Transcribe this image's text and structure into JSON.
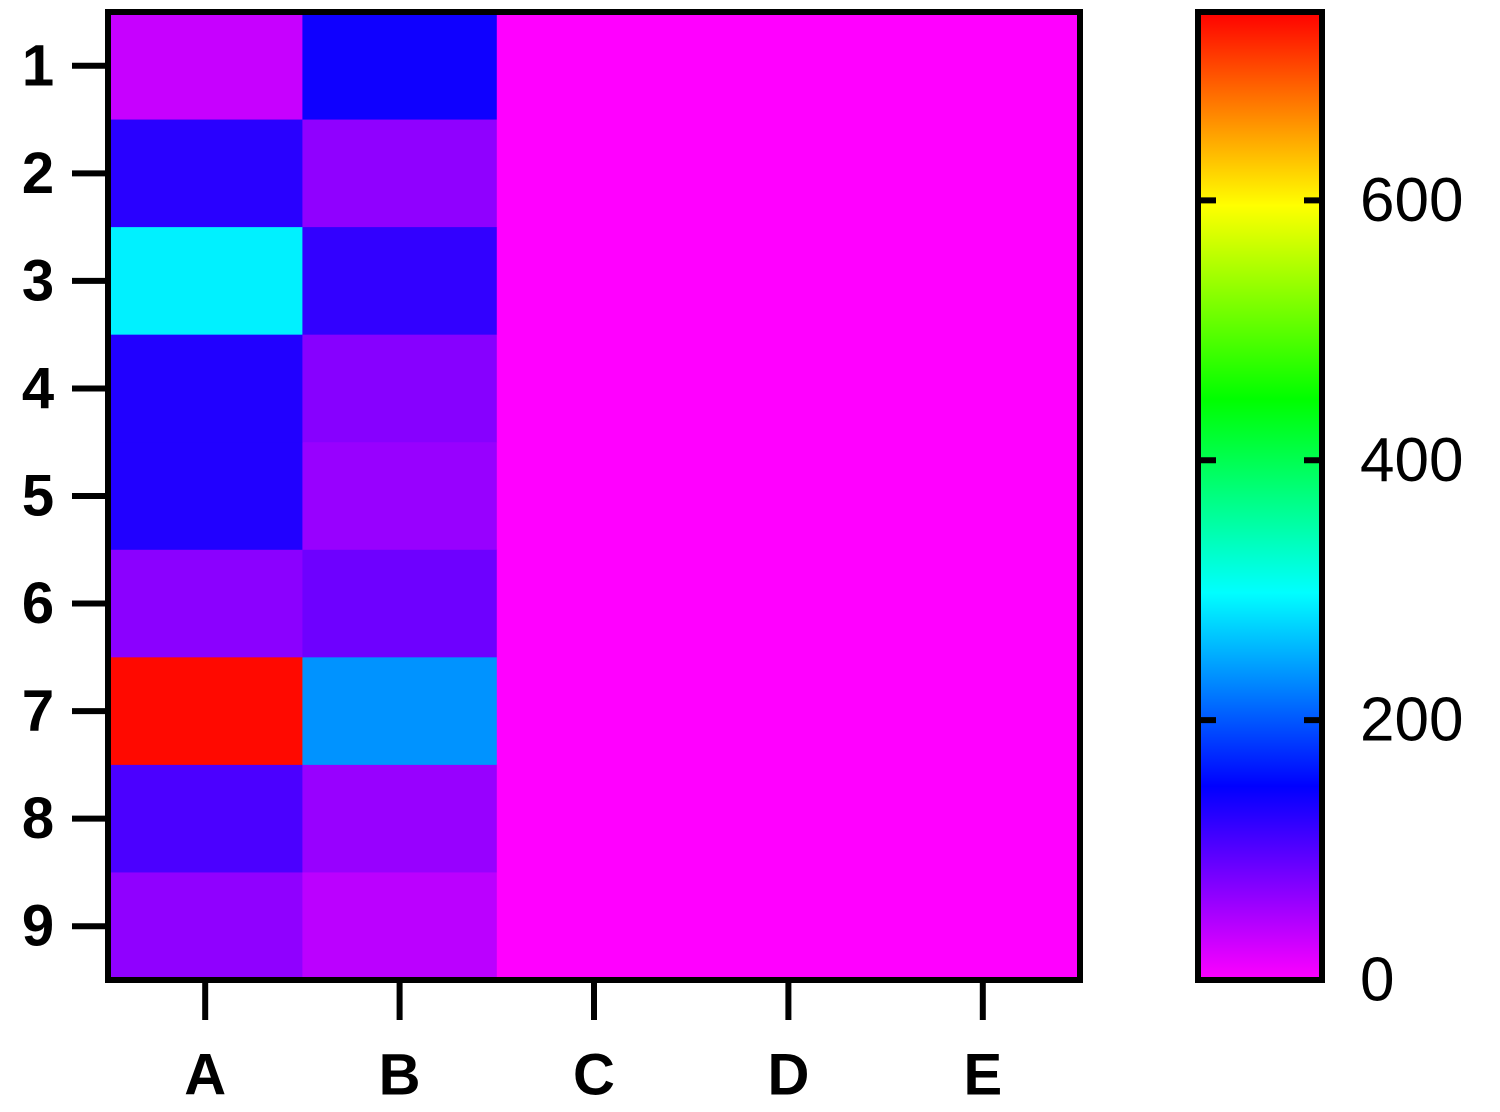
{
  "chart_data": {
    "type": "heatmap",
    "columns": [
      "A",
      "B",
      "C",
      "D",
      "E"
    ],
    "rows": [
      "1",
      "2",
      "3",
      "4",
      "5",
      "6",
      "7",
      "8",
      "9"
    ],
    "values": [
      [
        33,
        140,
        0,
        0,
        0
      ],
      [
        125,
        65,
        0,
        0,
        0
      ],
      [
        290,
        120,
        0,
        0,
        0
      ],
      [
        130,
        70,
        0,
        0,
        0
      ],
      [
        130,
        60,
        0,
        0,
        0
      ],
      [
        68,
        85,
        0,
        0,
        0
      ],
      [
        740,
        235,
        0,
        0,
        0
      ],
      [
        105,
        60,
        0,
        0,
        0
      ],
      [
        65,
        40,
        0,
        0,
        0
      ]
    ],
    "colorscale": [
      "#ff00ff",
      "#0000ff",
      "#00ffff",
      "#00ff00",
      "#ffff00",
      "#ff0000"
    ],
    "zlim": [
      0,
      745
    ],
    "zticks": [
      0,
      200,
      400,
      600
    ]
  }
}
